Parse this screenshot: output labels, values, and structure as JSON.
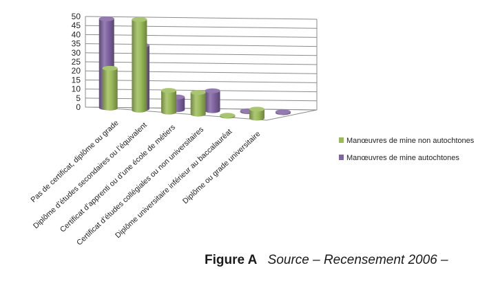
{
  "chart_data": {
    "type": "bar",
    "style": "3d-cylinder",
    "categories": [
      "Pas de certificat, diplôme ou grade",
      "Diplôme d’études secondaires ou l’équivalent",
      "Certificat d’apprenti ou d’une école de métiers",
      "Certificat d’études collégiales ou non universitaires",
      "Diplôme universitaire inférieur au baccalauréat",
      "Diplôme ou grade universitaire"
    ],
    "series": [
      {
        "name": "Manœuvres de mine non autochtones",
        "color": "#9BBB59",
        "values": [
          22,
          50,
          12,
          12,
          0.5,
          5
        ]
      },
      {
        "name": "Manœuvres de mine autochtones",
        "color": "#8064A2",
        "values": [
          49,
          35,
          7,
          11,
          0.5,
          0.5
        ]
      }
    ],
    "yticks": [
      "0",
      "5",
      "10",
      "15",
      "20",
      "25",
      "30",
      "35",
      "40",
      "45",
      "50"
    ],
    "ylim": [
      0,
      50
    ],
    "grid": true,
    "legend": "right"
  },
  "caption": {
    "figure_label": "Figure A",
    "source": "Source – Recensement 2006 –"
  }
}
